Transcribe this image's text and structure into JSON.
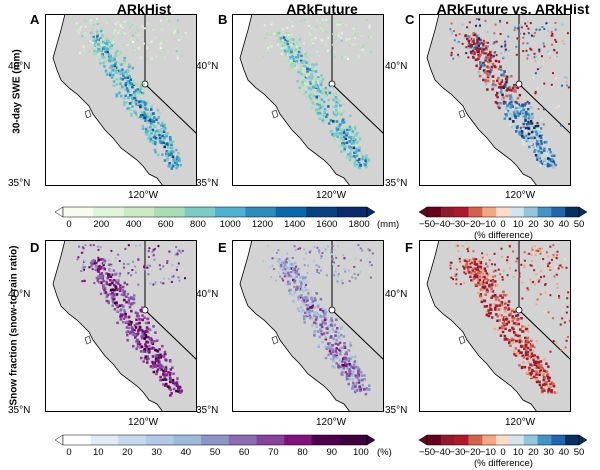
{
  "columns": [
    {
      "letter_top": "A",
      "letter_bottom": "D",
      "title": "ARkHist"
    },
    {
      "letter_top": "B",
      "letter_bottom": "E",
      "title": "ARkFuture"
    },
    {
      "letter_top": "C",
      "letter_bottom": "F",
      "title": "ARkFuture vs. ARkHist"
    }
  ],
  "rows": [
    {
      "label": "30-day SWE (mm)"
    },
    {
      "label": "Snow fraction (snow-to-rain ratio)"
    }
  ],
  "axis": {
    "lat_north": "40°N",
    "lat_south": "35°N",
    "lon": "120°W"
  },
  "colorbars": {
    "swe": {
      "ticks": [
        "0",
        "200",
        "400",
        "600",
        "800",
        "1000",
        "1200",
        "1400",
        "1600",
        "1800"
      ],
      "unit": "(mm)",
      "colors": [
        "#f7fcf0",
        "#e0f3db",
        "#ccebc5",
        "#a8ddb5",
        "#7bccc4",
        "#4eb3d3",
        "#2b8cbe",
        "#0868ac",
        "#084081",
        "#0b2a6b"
      ]
    },
    "fraction": {
      "ticks": [
        "0",
        "10",
        "20",
        "30",
        "40",
        "50",
        "60",
        "70",
        "80",
        "90",
        "100"
      ],
      "unit": "(%)",
      "colors": [
        "#ffffff",
        "#e0ecf4",
        "#c5d9ee",
        "#b3c7e6",
        "#9ebcda",
        "#8c96c6",
        "#8c6bb1",
        "#88419d",
        "#810f7c",
        "#4d004b",
        "#3f0040"
      ]
    },
    "diff": {
      "ticks": [
        "−50",
        "−40",
        "−30",
        "−20",
        "−10",
        "0",
        "10",
        "20",
        "30",
        "40",
        "50"
      ],
      "caption": "(% difference)",
      "colors": [
        "#67001f",
        "#931a2a",
        "#b2182b",
        "#d6604d",
        "#f4a582",
        "#fddbc7",
        "#d1e5f0",
        "#92c5de",
        "#4393c3",
        "#2166ac",
        "#053061"
      ]
    }
  }
}
